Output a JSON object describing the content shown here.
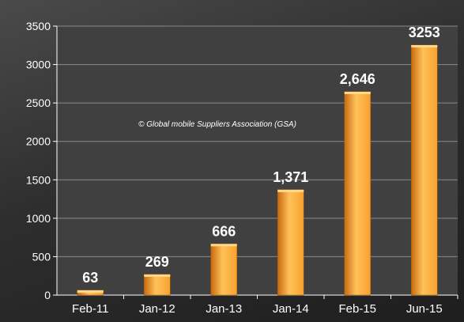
{
  "chart_data": {
    "type": "bar",
    "categories": [
      "Feb-11",
      "Jan-12",
      "Jan-13",
      "Jan-14",
      "Feb-15",
      "Jun-15"
    ],
    "values": [
      63,
      269,
      666,
      1371,
      2646,
      3253
    ],
    "data_labels": [
      "63",
      "269",
      "666",
      "1,371",
      "2,646",
      "3253"
    ],
    "y_ticks": [
      "0",
      "500",
      "1000",
      "1500",
      "2000",
      "2500",
      "3000",
      "3500"
    ],
    "ylim": [
      0,
      3500
    ],
    "annotation": "© Global mobile Suppliers Association (GSA)",
    "grid": true,
    "colors": {
      "plot_bg": "#404040",
      "bar_light": "#ffc25a",
      "bar_mid": "#f7a12e",
      "bar_dark": "#c86a10",
      "gridline": "#8a8a8a",
      "text": "#ffffff"
    }
  }
}
